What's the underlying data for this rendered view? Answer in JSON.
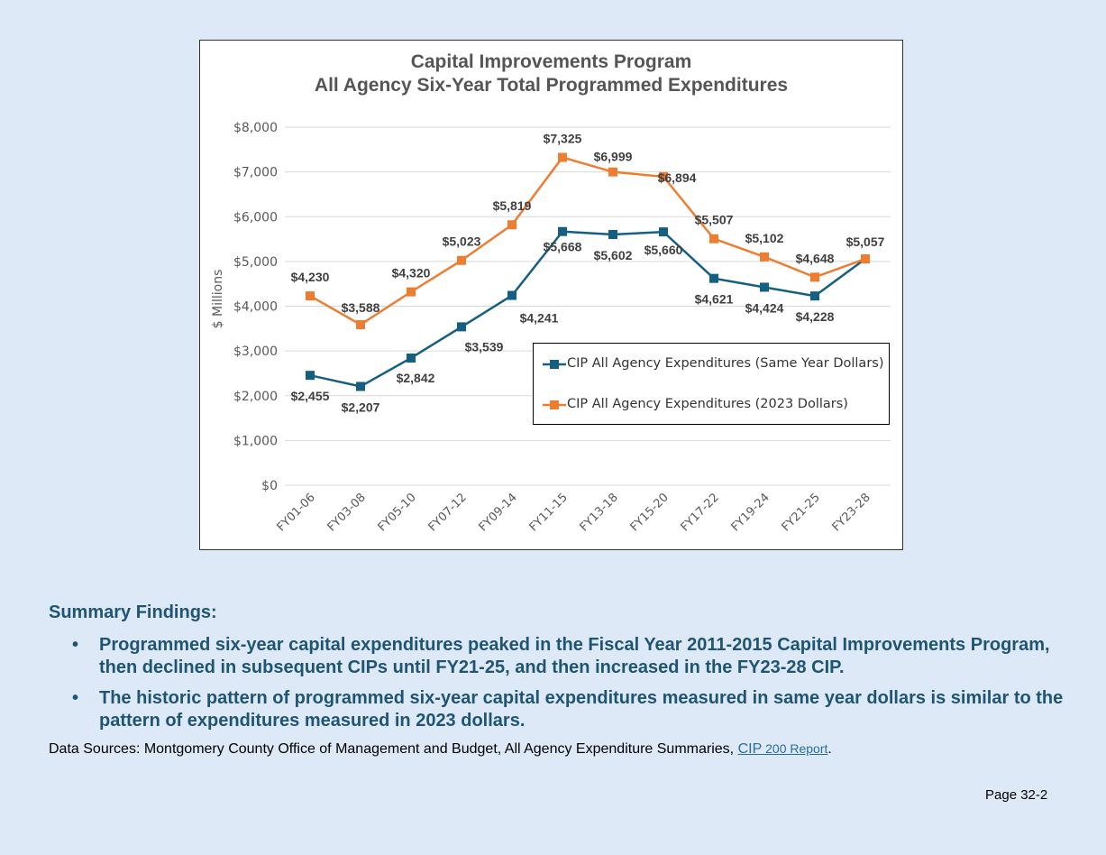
{
  "colors": {
    "background": "#dde9f7",
    "series_same_year": "#155f82",
    "series_2023": "#ed7d31",
    "heading": "#1f5573",
    "link": "#2a6ea0"
  },
  "chart_data": {
    "type": "line",
    "title": "Capital Improvements Program",
    "subtitle": "All Agency Six-Year Total Programmed Expenditures",
    "xlabel": "",
    "ylabel": "$ Millions",
    "ylim": [
      0,
      8000
    ],
    "yticks": [
      "$0",
      "$1,000",
      "$2,000",
      "$3,000",
      "$4,000",
      "$5,000",
      "$6,000",
      "$7,000",
      "$8,000"
    ],
    "categories": [
      "FY01-06",
      "FY03-08",
      "FY05-10",
      "FY07-12",
      "FY09-14",
      "FY11-15",
      "FY13-18",
      "FY15-20",
      "FY17-22",
      "FY19-24",
      "FY21-25",
      "FY23-28"
    ],
    "grid": true,
    "legend_position": "bottom-right",
    "series": [
      {
        "name": "CIP All Agency Expenditures (Same Year Dollars)",
        "values": [
          2455,
          2207,
          2842,
          3539,
          4241,
          5668,
          5602,
          5660,
          4621,
          4424,
          4228,
          5057
        ],
        "labels": [
          "$2,455",
          "$2,207",
          "$2,842",
          "$3,539",
          "$4,241",
          "$5,668",
          "$5,602",
          "$5,660",
          "$4,621",
          "$4,424",
          "$4,228",
          ""
        ]
      },
      {
        "name": "CIP All Agency Expenditures (2023 Dollars)",
        "values": [
          4230,
          3588,
          4320,
          5023,
          5819,
          7325,
          6999,
          6894,
          5507,
          5102,
          4648,
          5057
        ],
        "labels": [
          "$4,230",
          "$3,588",
          "$4,320",
          "$5,023",
          "$5,819",
          "$7,325",
          "$6,999",
          "$6,894",
          "$5,507",
          "$5,102",
          "$4,648",
          "$5,057"
        ]
      }
    ]
  },
  "summary": {
    "heading": "Summary Findings:",
    "bullet_symbol": "•",
    "bullets": [
      "Programmed six-year capital expenditures peaked in the Fiscal Year 2011-2015 Capital Improvements Program, then declined in subsequent CIPs until FY21-25, and then increased in the FY23-28 CIP.",
      "The historic pattern of programmed six-year capital expenditures measured in same year dollars is similar to the pattern of expenditures measured in 2023 dollars."
    ]
  },
  "sources": {
    "prefix": "Data Sources: Montgomery County Office of Management and Budget, All Agency Expenditure Summaries, ",
    "link_main": "CIP",
    "link_small": " 200 Report",
    "suffix": "."
  },
  "page_number": "Page 32-2"
}
